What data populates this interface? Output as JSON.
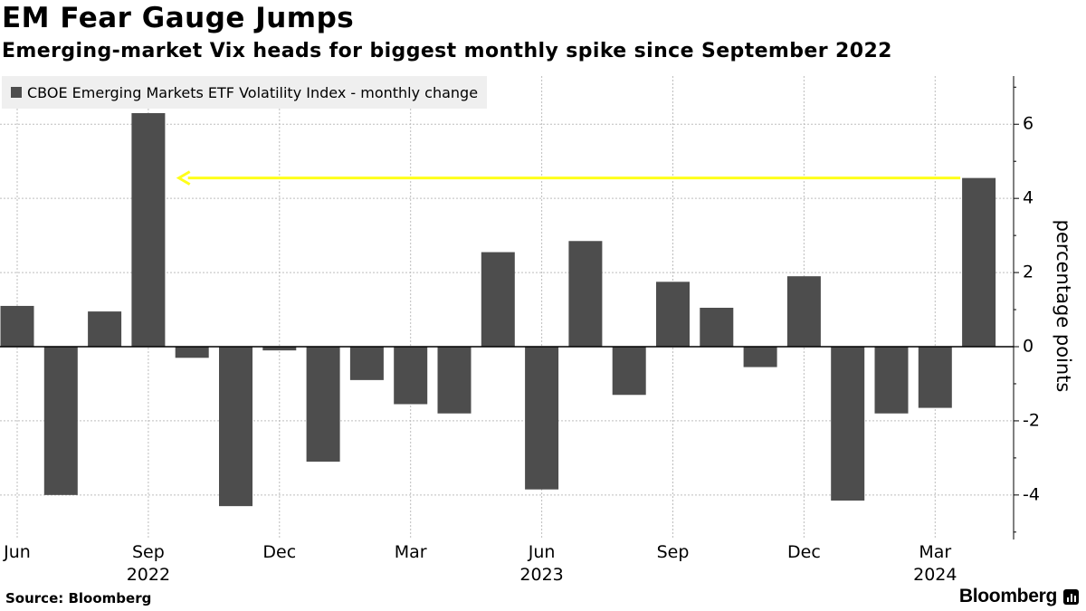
{
  "header": {
    "title": "EM Fear Gauge Jumps",
    "subtitle": "Emerging-market Vix heads for biggest monthly spike since September 2022"
  },
  "footer": {
    "source": "Source: Bloomberg",
    "brand": "Bloomberg"
  },
  "colors": {
    "bar": "#4d4d4d",
    "arrow": "#ffff1a",
    "grid": "#bdbdbd",
    "legend_bg": "#efefef"
  },
  "chart_data": {
    "type": "bar",
    "title": "EM Fear Gauge Jumps",
    "subtitle": "Emerging-market Vix heads for biggest monthly spike since September 2022",
    "legend": [
      "CBOE Emerging Markets ETF Volatility Index - monthly change"
    ],
    "legend_position": "top-left",
    "series": [
      {
        "name": "CBOE Emerging Markets ETF Volatility Index - monthly change",
        "values": [
          1.1,
          -4.0,
          0.95,
          6.3,
          -0.3,
          -4.3,
          -0.1,
          -3.1,
          -0.9,
          -1.55,
          -1.8,
          2.55,
          -3.85,
          2.85,
          -1.3,
          1.75,
          1.05,
          -0.55,
          1.9,
          -4.15,
          -1.8,
          -1.65,
          4.55
        ]
      }
    ],
    "categories": [
      "Jun 2022",
      "Jul 2022",
      "Aug 2022",
      "Sep 2022",
      "Oct 2022",
      "Nov 2022",
      "Dec 2022",
      "Jan 2023",
      "Feb 2023",
      "Mar 2023",
      "Apr 2023",
      "May 2023",
      "Jun 2023",
      "Jul 2023",
      "Aug 2023",
      "Sep 2023",
      "Oct 2023",
      "Nov 2023",
      "Dec 2023",
      "Jan 2024",
      "Feb 2024",
      "Mar 2024",
      "Apr 2024"
    ],
    "x_ticks": [
      {
        "index": 0,
        "label": "Jun",
        "year": ""
      },
      {
        "index": 3,
        "label": "Sep",
        "year": "2022"
      },
      {
        "index": 6,
        "label": "Dec",
        "year": ""
      },
      {
        "index": 9,
        "label": "Mar",
        "year": ""
      },
      {
        "index": 12,
        "label": "Jun",
        "year": "2023"
      },
      {
        "index": 15,
        "label": "Sep",
        "year": ""
      },
      {
        "index": 18,
        "label": "Dec",
        "year": ""
      },
      {
        "index": 21,
        "label": "Mar",
        "year": "2024"
      }
    ],
    "y_ticks": [
      6,
      4,
      2,
      0,
      -2,
      -4
    ],
    "y_tick_labels": [
      "6",
      "4",
      "2",
      "0",
      "-2",
      "-4"
    ],
    "ylim": [
      -5.2,
      7.3
    ],
    "ylabel": "percentage points",
    "xlabel": "",
    "y_axis_side": "right",
    "grid": true,
    "annotation": {
      "type": "arrow",
      "from_index": 22,
      "to_index": 4,
      "value": 4.55,
      "color": "yellow"
    }
  }
}
